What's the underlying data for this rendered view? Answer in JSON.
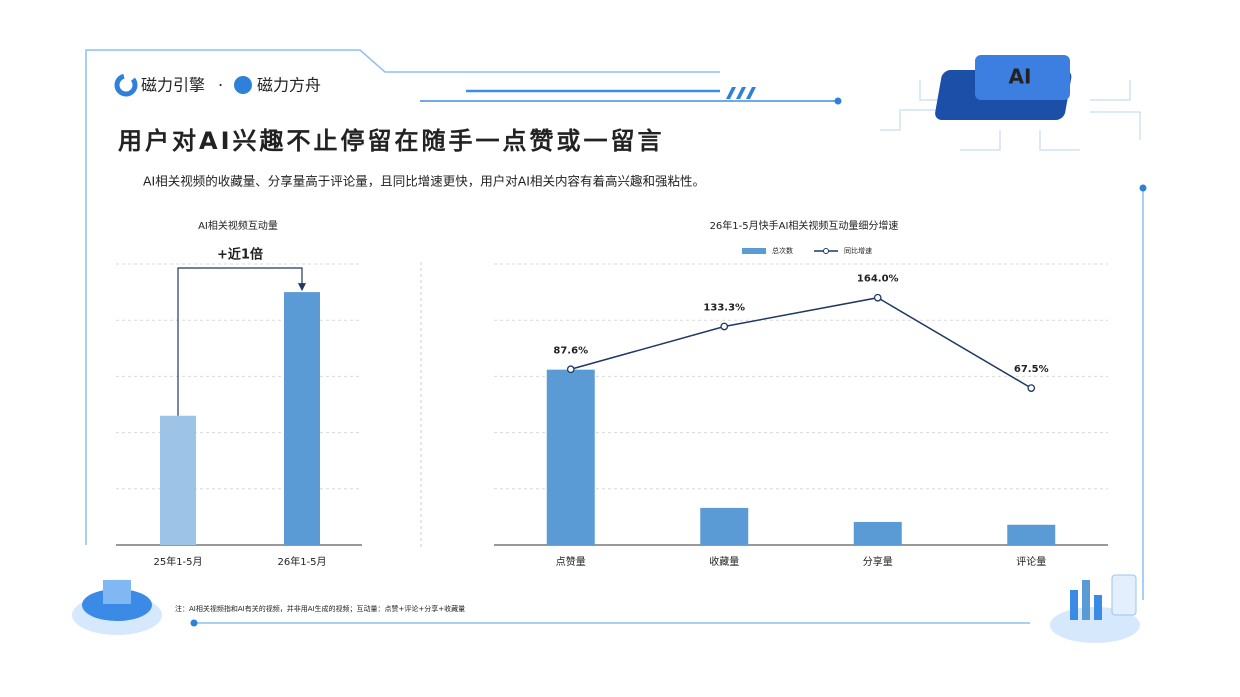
{
  "header": {
    "brands": [
      "磁力引擎",
      "·",
      "磁力方舟"
    ],
    "badge": "AI"
  },
  "title": "用户对AI兴趣不止停留在随手一点赞或一留言",
  "subtitle": "AI相关视频的收藏量、分享量高于评论量，且同比增速更快，用户对AI相关内容有着高兴趣和强粘性。",
  "chart_data": [
    {
      "type": "bar",
      "title": "AI相关视频互动量",
      "categories": [
        "25年1-5月",
        "26年1-5月"
      ],
      "values": [
        2.3,
        4.5
      ],
      "colors": [
        "#9dc3e6",
        "#5b9bd5"
      ],
      "ylim": [
        0,
        5
      ],
      "grid": true,
      "annotation": "+近1倍"
    },
    {
      "type": "bar-line",
      "title": "26年1-5月快手AI相关视频互动量细分增速",
      "categories": [
        "点赞量",
        "收藏量",
        "分享量",
        "评论量"
      ],
      "series": [
        {
          "name": "总次数",
          "type": "bar",
          "color": "#5b9bd5",
          "values": [
            3.12,
            0.66,
            0.41,
            0.36
          ]
        },
        {
          "name": "同比增速",
          "type": "line",
          "axis": "y2",
          "color": "#1f3864",
          "values": [
            87.6,
            133.3,
            164.0,
            67.5
          ],
          "value_labels": [
            "87.6%",
            "133.3%",
            "164.0%",
            "67.5%"
          ]
        }
      ],
      "ylim": [
        0,
        5
      ],
      "y2lim": [
        -100,
        200
      ],
      "grid": true,
      "legend": "top"
    }
  ],
  "footnote": "注：AI相关视频指和AI有关的视频，并非用AI生成的视频；互动量：点赞+评论+分享+收藏量"
}
